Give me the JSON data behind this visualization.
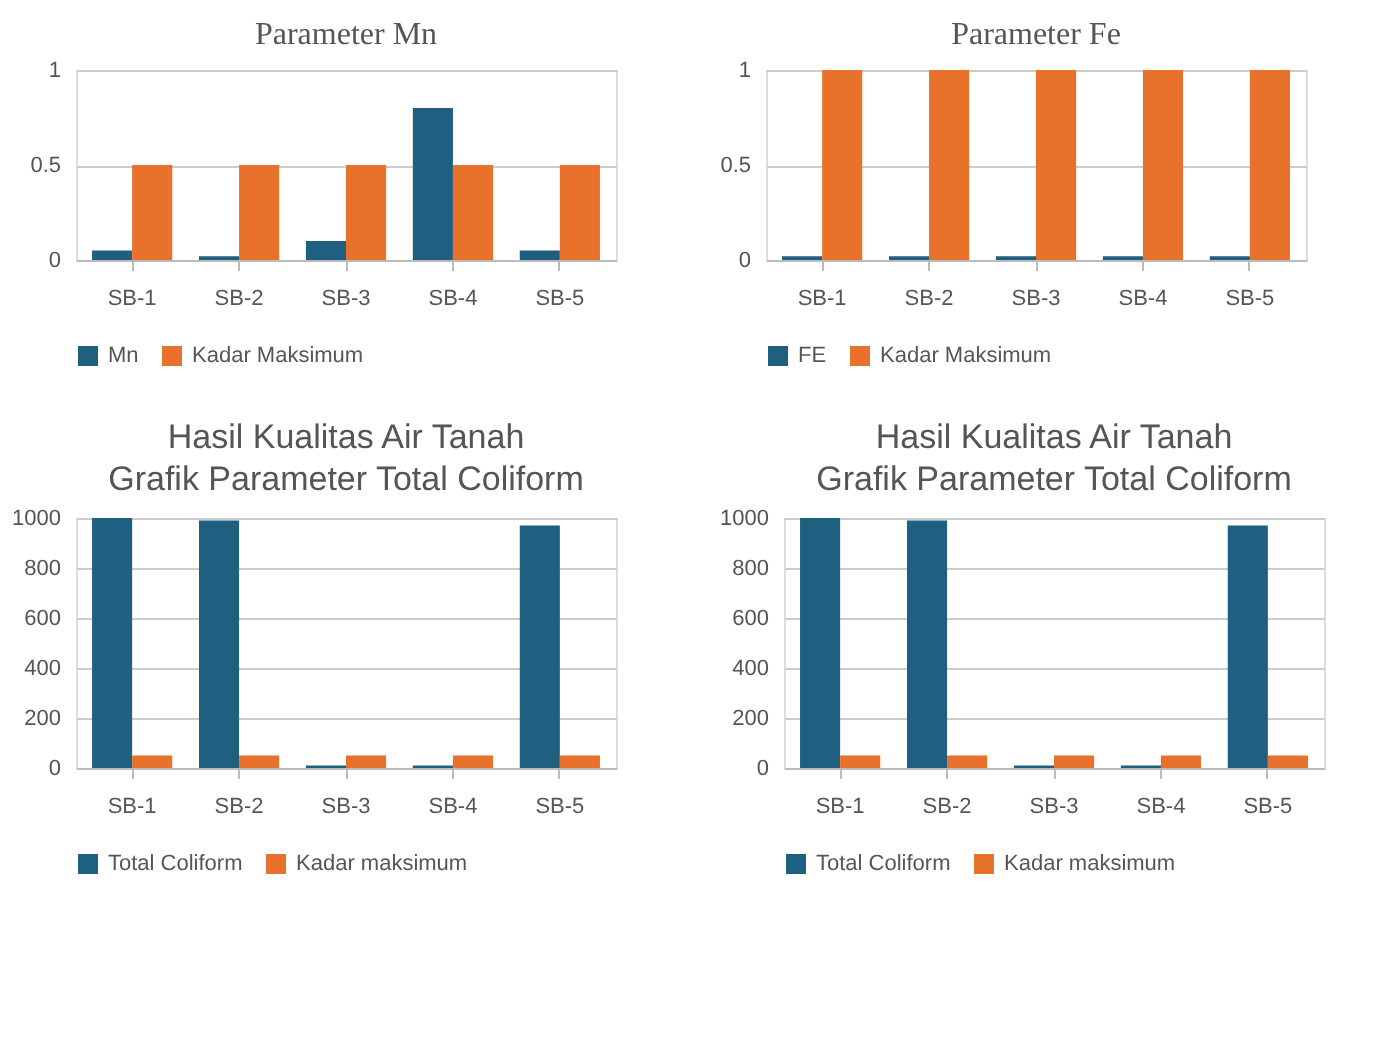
{
  "chart_data": [
    {
      "type": "bar",
      "title": "Parameter  Mn",
      "categories": [
        "SB-1",
        "SB-2",
        "SB-3",
        "SB-4",
        "SB-5"
      ],
      "ylim": [
        0,
        1
      ],
      "yticks": [
        0,
        0.5,
        1
      ],
      "grid": "y",
      "legend": "bottom",
      "series": [
        {
          "name": "Mn",
          "color": "#1f5f7f",
          "values": [
            0.05,
            0.02,
            0.1,
            0.8,
            0.05
          ]
        },
        {
          "name": "Kadar Maksimum",
          "color": "#e8712b",
          "values": [
            0.5,
            0.5,
            0.5,
            0.5,
            0.5
          ]
        }
      ]
    },
    {
      "type": "bar",
      "title": "Parameter  Fe",
      "categories": [
        "SB-1",
        "SB-2",
        "SB-3",
        "SB-4",
        "SB-5"
      ],
      "ylim": [
        0,
        1
      ],
      "yticks": [
        0,
        0.5,
        1
      ],
      "grid": "y",
      "legend": "bottom",
      "series": [
        {
          "name": "FE",
          "color": "#1f5f7f",
          "values": [
            0.02,
            0.02,
            0.02,
            0.02,
            0.02
          ]
        },
        {
          "name": "Kadar Maksimum",
          "color": "#e8712b",
          "values": [
            1,
            1,
            1,
            1,
            1
          ]
        }
      ]
    },
    {
      "type": "bar",
      "title": "Hasil Kualitas Air Tanah",
      "subtitle": "Grafik Parameter Total Coliform",
      "categories": [
        "SB-1",
        "SB-2",
        "SB-3",
        "SB-4",
        "SB-5"
      ],
      "ylim": [
        0,
        1000
      ],
      "yticks": [
        0,
        200,
        400,
        600,
        800,
        1000
      ],
      "grid": "y",
      "legend": "bottom",
      "series": [
        {
          "name": "Total Coliform",
          "color": "#1f5f7f",
          "values": [
            1000,
            990,
            10,
            10,
            970
          ]
        },
        {
          "name": "Kadar maksimum",
          "color": "#e8712b",
          "values": [
            50,
            50,
            50,
            50,
            50
          ]
        }
      ]
    },
    {
      "type": "bar",
      "title": "Hasil Kualitas Air Tanah",
      "subtitle": "Grafik Parameter Total Coliform",
      "categories": [
        "SB-1",
        "SB-2",
        "SB-3",
        "SB-4",
        "SB-5"
      ],
      "ylim": [
        0,
        1000
      ],
      "yticks": [
        0,
        200,
        400,
        600,
        800,
        1000
      ],
      "grid": "y",
      "legend": "bottom",
      "series": [
        {
          "name": "Total Coliform",
          "color": "#1f5f7f",
          "values": [
            1000,
            990,
            10,
            10,
            970
          ]
        },
        {
          "name": "Kadar maksimum",
          "color": "#e8712b",
          "values": [
            50,
            50,
            50,
            50,
            50
          ]
        }
      ]
    }
  ]
}
